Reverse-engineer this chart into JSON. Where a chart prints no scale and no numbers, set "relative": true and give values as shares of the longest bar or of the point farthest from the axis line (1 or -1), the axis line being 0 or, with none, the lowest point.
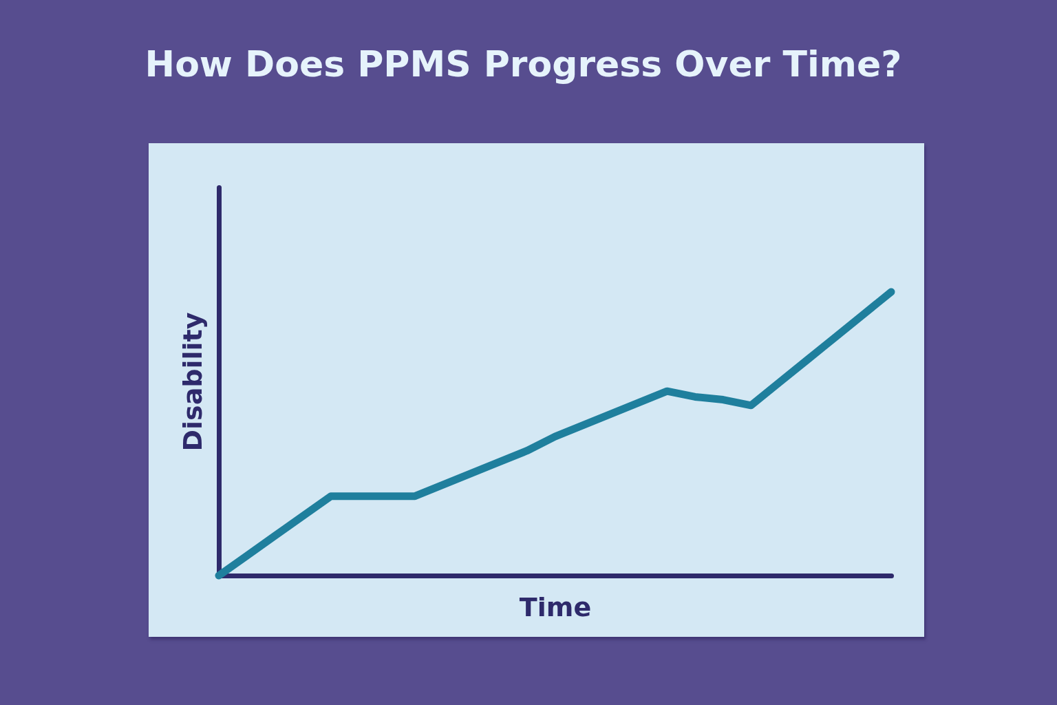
{
  "chart_data": {
    "type": "line",
    "title": "How Does PPMS Progress Over Time?",
    "xlabel": "Time",
    "ylabel": "Disability",
    "relative": true,
    "categories": [
      null,
      null,
      null,
      null,
      null,
      null,
      null,
      null,
      null,
      null,
      null,
      null,
      null,
      null,
      null,
      null,
      null,
      null,
      null,
      null,
      null,
      null,
      null,
      null,
      null
    ],
    "series": [
      {
        "color": "#1f7f9d",
        "values": [
          0,
          0.07,
          0.14,
          0.21,
          0.28,
          0.28,
          0.28,
          0.28,
          0.32,
          0.36,
          0.4,
          0.44,
          0.49,
          0.53,
          0.57,
          0.61,
          0.65,
          0.63,
          0.62,
          0.6,
          0.68,
          0.76,
          0.84,
          0.92,
          1.0
        ]
      }
    ]
  }
}
